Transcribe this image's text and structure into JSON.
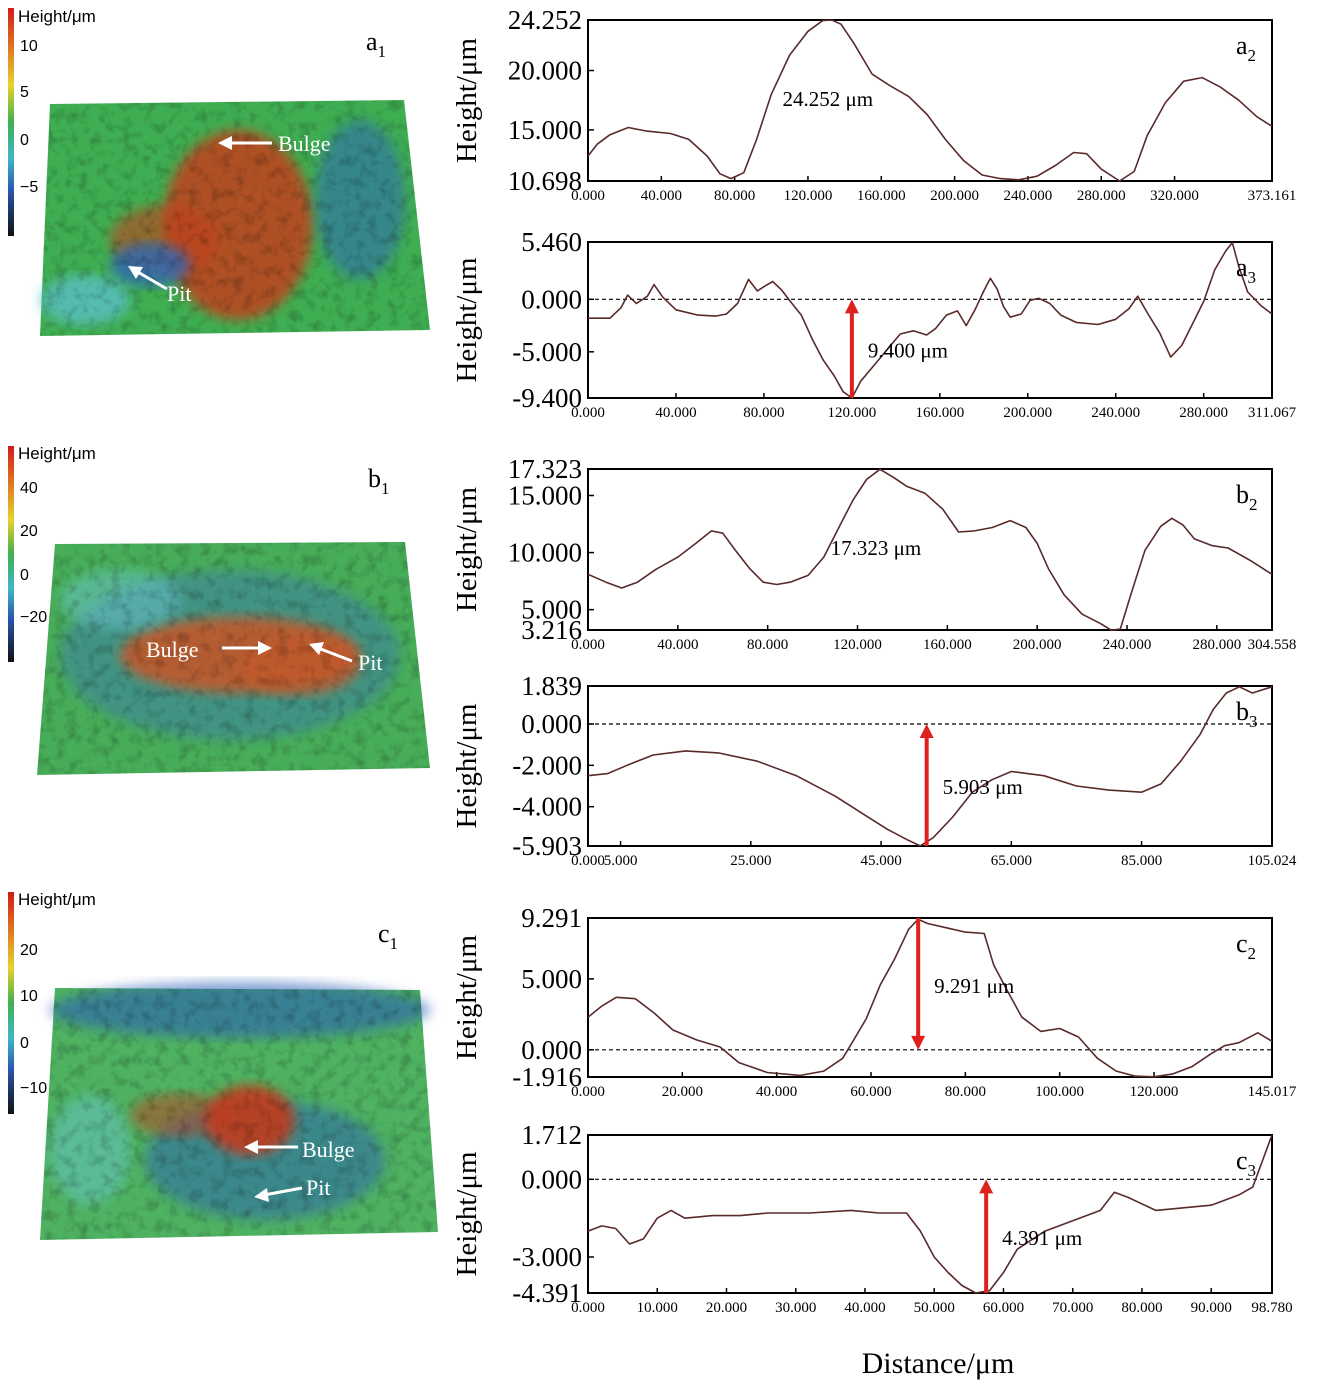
{
  "figure": {
    "shared_xlabel": "Distance/μm"
  },
  "maps": [
    {
      "panel": "a1",
      "panel_letter": "a",
      "panel_sub": "1",
      "colorbar_title": "Height/μm",
      "colorbar_ticks": [
        "10",
        "5",
        "0",
        "−5"
      ],
      "colorbar_tick_values": [
        10,
        5,
        0,
        -5
      ],
      "colorbar_range": [
        -9,
        14
      ],
      "surface_colors": {
        "base": "#3fae52",
        "high": "#c2411f",
        "low": "#2f67b8",
        "rim": "#5fc1d6"
      },
      "annotations": [
        {
          "label": "Bulge",
          "arrow": "left"
        },
        {
          "label": "Pit",
          "arrow": "up-left"
        }
      ]
    },
    {
      "panel": "b1",
      "panel_letter": "b",
      "panel_sub": "1",
      "colorbar_title": "Height/μm",
      "colorbar_ticks": [
        "40",
        "20",
        "0",
        "−20"
      ],
      "colorbar_tick_values": [
        40,
        20,
        0,
        -20
      ],
      "colorbar_range": [
        -35,
        55
      ],
      "surface_colors": {
        "base": "#47ad58",
        "high": "#c2582a",
        "low": "#3a74b8",
        "rim": "#6cc4cf"
      },
      "annotations": [
        {
          "label": "Bulge",
          "arrow": "right"
        },
        {
          "label": "Pit",
          "arrow": "up-left"
        }
      ]
    },
    {
      "panel": "c1",
      "panel_letter": "c",
      "panel_sub": "1",
      "colorbar_title": "Height/μm",
      "colorbar_ticks": [
        "20",
        "10",
        "0",
        "−10"
      ],
      "colorbar_tick_values": [
        20,
        10,
        0,
        -10
      ],
      "colorbar_range": [
        -16,
        30
      ],
      "surface_colors": {
        "base": "#4eb261",
        "high": "#c23a1c",
        "low": "#2c5fb5",
        "rim": "#6bc6d8"
      },
      "annotations": [
        {
          "label": "Bulge",
          "arrow": "left"
        },
        {
          "label": "Pit",
          "arrow": "left"
        }
      ]
    }
  ],
  "chart_data": [
    {
      "panel": "a2",
      "panel_letter": "a",
      "panel_sub": "2",
      "type": "line",
      "ylabel": "Height/μm",
      "ylim": [
        10.698,
        24.252
      ],
      "yticks": [
        10.698,
        15.0,
        20.0,
        24.252
      ],
      "ytick_labels": [
        "10.698",
        "15.000",
        "20.000",
        "24.252"
      ],
      "xlim": [
        0,
        373.161
      ],
      "xticks": [
        0,
        40,
        80,
        120,
        160,
        200,
        240,
        280,
        320,
        373.161
      ],
      "xtick_labels": [
        "0.000",
        "40.000",
        "80.000",
        "120.000",
        "160.000",
        "200.000",
        "240.000",
        "280.000",
        "320.000",
        "373.161"
      ],
      "zero_line": false,
      "annotation": {
        "text": "24.252 μm",
        "arrow": false
      },
      "x": [
        0,
        5,
        12,
        22,
        32,
        45,
        55,
        65,
        72,
        78,
        85,
        92,
        100,
        110,
        120,
        128,
        133,
        138,
        145,
        155,
        165,
        175,
        185,
        195,
        205,
        215,
        225,
        235,
        245,
        255,
        265,
        272,
        280,
        290,
        298,
        305,
        315,
        325,
        335,
        345,
        355,
        365,
        373.161
      ],
      "y": [
        12.8,
        13.8,
        14.6,
        15.2,
        14.9,
        14.7,
        14.2,
        12.8,
        11.3,
        10.9,
        11.4,
        14.2,
        18.0,
        21.3,
        23.3,
        24.2,
        24.25,
        23.9,
        22.3,
        19.7,
        18.7,
        17.8,
        16.3,
        14.2,
        12.4,
        11.2,
        10.9,
        10.8,
        11.1,
        12.0,
        13.1,
        13.0,
        11.7,
        10.7,
        11.5,
        14.5,
        17.3,
        19.1,
        19.4,
        18.6,
        17.5,
        16.1,
        15.3
      ]
    },
    {
      "panel": "a3",
      "panel_letter": "a",
      "panel_sub": "3",
      "type": "line",
      "ylabel": "Height/μm",
      "ylim": [
        -9.4,
        5.46
      ],
      "yticks": [
        -9.4,
        -5.0,
        0.0,
        5.46
      ],
      "ytick_labels": [
        "-9.400",
        "-5.000",
        "0.000",
        "5.460"
      ],
      "xlim": [
        0,
        311.067
      ],
      "xticks": [
        0,
        40,
        80,
        120,
        160,
        200,
        240,
        280,
        311.067
      ],
      "xtick_labels": [
        "0.000",
        "40.000",
        "80.000",
        "120.000",
        "160.000",
        "200.000",
        "240.000",
        "280.000",
        "311.067"
      ],
      "zero_line": true,
      "annotation": {
        "text": "9.400 μm",
        "arrow": true,
        "arrow_x": 120,
        "arrow_from": -9.4,
        "arrow_to": 0
      },
      "x": [
        0,
        5,
        10,
        15,
        18,
        22,
        27,
        30,
        34,
        40,
        50,
        58,
        63,
        68,
        73,
        77,
        80,
        84,
        88,
        92,
        97,
        102,
        107,
        112,
        116,
        120,
        124,
        130,
        136,
        142,
        148,
        154,
        158,
        163,
        168,
        172,
        176,
        180,
        183,
        186,
        189,
        192,
        197,
        201,
        205,
        210,
        215,
        222,
        232,
        240,
        246,
        250,
        255,
        260,
        265,
        270,
        275,
        280,
        285,
        290,
        293,
        296,
        300,
        306,
        311.067
      ],
      "y": [
        -1.8,
        -1.8,
        -1.8,
        -0.8,
        0.4,
        -0.4,
        0.3,
        1.4,
        0.2,
        -1.0,
        -1.5,
        -1.6,
        -1.4,
        -0.4,
        1.9,
        0.8,
        1.2,
        1.7,
        0.9,
        -0.2,
        -1.5,
        -3.8,
        -5.8,
        -7.3,
        -8.8,
        -9.4,
        -7.8,
        -6.3,
        -4.8,
        -3.3,
        -3.0,
        -3.4,
        -2.8,
        -1.5,
        -1.1,
        -2.5,
        -1.0,
        0.8,
        2.0,
        1.0,
        -0.7,
        -1.7,
        -1.4,
        -0.1,
        0.1,
        -0.4,
        -1.5,
        -2.2,
        -2.4,
        -1.9,
        -0.9,
        0.3,
        -1.5,
        -3.2,
        -5.5,
        -4.4,
        -2.3,
        -0.2,
        2.8,
        4.6,
        5.4,
        3.1,
        0.7,
        -0.6,
        -1.4
      ]
    },
    {
      "panel": "b2",
      "panel_letter": "b",
      "panel_sub": "2",
      "type": "line",
      "ylabel": "Height/μm",
      "ylim": [
        3.216,
        17.323
      ],
      "yticks": [
        3.216,
        5.0,
        10.0,
        15.0,
        17.323
      ],
      "ytick_labels": [
        "3.216",
        "5.000",
        "10.000",
        "15.000",
        "17.323"
      ],
      "xlim": [
        0,
        304.558
      ],
      "xticks": [
        0,
        40,
        80,
        120,
        160,
        200,
        240,
        280,
        304.558
      ],
      "xtick_labels": [
        "0.000",
        "40.000",
        "80.000",
        "120.000",
        "160.000",
        "200.000",
        "240.000",
        "280.000",
        "304.558"
      ],
      "zero_line": false,
      "annotation": {
        "text": "17.323 μm",
        "arrow": false
      },
      "x": [
        0,
        8,
        15,
        22,
        30,
        40,
        48,
        55,
        60,
        66,
        72,
        78,
        84,
        90,
        98,
        105,
        112,
        118,
        124,
        130,
        136,
        142,
        150,
        158,
        165,
        172,
        180,
        188,
        195,
        200,
        205,
        212,
        220,
        228,
        233,
        237,
        242,
        248,
        255,
        260,
        265,
        270,
        278,
        285,
        295,
        304.558
      ],
      "y": [
        8.1,
        7.4,
        6.9,
        7.4,
        8.5,
        9.6,
        10.8,
        11.9,
        11.7,
        10.1,
        8.6,
        7.4,
        7.2,
        7.4,
        8.0,
        9.6,
        12.3,
        14.6,
        16.4,
        17.3,
        16.6,
        15.8,
        15.2,
        13.8,
        11.8,
        11.9,
        12.2,
        12.8,
        12.2,
        10.8,
        8.6,
        6.3,
        4.6,
        3.8,
        3.2,
        3.3,
        6.5,
        10.2,
        12.3,
        13.0,
        12.4,
        11.2,
        10.6,
        10.4,
        9.3,
        8.1
      ]
    },
    {
      "panel": "b3",
      "panel_letter": "b",
      "panel_sub": "3",
      "type": "line",
      "ylabel": "Height/μm",
      "ylim": [
        -5.903,
        1.839
      ],
      "yticks": [
        -5.903,
        -4.0,
        -2.0,
        0.0,
        1.839
      ],
      "ytick_labels": [
        "-5.903",
        "-4.000",
        "-2.000",
        "0.000",
        "1.839"
      ],
      "xlim": [
        0,
        105.024
      ],
      "xticks": [
        0,
        5,
        25,
        45,
        65,
        85,
        105.024
      ],
      "xtick_labels": [
        "0.000",
        "5.000",
        "25.000",
        "45.000",
        "65.000",
        "85.000",
        "105.024"
      ],
      "zero_line": true,
      "annotation": {
        "text": "5.903 μm",
        "arrow": true,
        "arrow_x": 52,
        "arrow_from": -5.903,
        "arrow_to": 0
      },
      "x": [
        0,
        3,
        6,
        10,
        15,
        20,
        26,
        32,
        38,
        42,
        46,
        49,
        51,
        53,
        56,
        59,
        62,
        65,
        70,
        75,
        80,
        85,
        88,
        91,
        94,
        96,
        98,
        100,
        102,
        105.024
      ],
      "y": [
        -2.5,
        -2.4,
        -2.0,
        -1.5,
        -1.3,
        -1.4,
        -1.8,
        -2.5,
        -3.5,
        -4.3,
        -5.1,
        -5.6,
        -5.9,
        -5.5,
        -4.5,
        -3.3,
        -2.7,
        -2.3,
        -2.5,
        -3.0,
        -3.2,
        -3.3,
        -2.9,
        -1.8,
        -0.5,
        0.7,
        1.5,
        1.8,
        1.5,
        1.8
      ]
    },
    {
      "panel": "c2",
      "panel_letter": "c",
      "panel_sub": "2",
      "type": "line",
      "ylabel": "Height/μm",
      "ylim": [
        -1.916,
        9.291
      ],
      "yticks": [
        -1.916,
        0.0,
        5.0,
        9.291
      ],
      "ytick_labels": [
        "-1.916",
        "0.000",
        "5.000",
        "9.291"
      ],
      "xlim": [
        0,
        145.017
      ],
      "xticks": [
        0,
        20,
        40,
        60,
        80,
        100,
        120,
        145.017
      ],
      "xtick_labels": [
        "0.000",
        "20.000",
        "40.000",
        "60.000",
        "80.000",
        "100.000",
        "120.000",
        "145.017"
      ],
      "zero_line": true,
      "annotation": {
        "text": "9.291 μm",
        "arrow": true,
        "arrow_x": 70,
        "arrow_from": 9.291,
        "arrow_to": 0
      },
      "x": [
        0,
        3,
        6,
        10,
        14,
        18,
        23,
        28,
        32,
        38,
        45,
        50,
        54,
        56,
        59,
        62,
        65,
        68,
        70,
        72,
        76,
        80,
        84,
        86,
        89,
        92,
        96,
        100,
        104,
        108,
        112,
        116,
        120,
        124,
        128,
        132,
        135,
        138,
        142,
        145.017
      ],
      "y": [
        2.3,
        3.1,
        3.7,
        3.6,
        2.6,
        1.4,
        0.7,
        0.2,
        -0.9,
        -1.6,
        -1.8,
        -1.5,
        -0.6,
        0.5,
        2.2,
        4.6,
        6.4,
        8.5,
        9.2,
        8.9,
        8.6,
        8.3,
        8.2,
        6.0,
        4.1,
        2.3,
        1.3,
        1.5,
        0.9,
        -0.6,
        -1.5,
        -1.85,
        -1.9,
        -1.7,
        -1.2,
        -0.3,
        0.3,
        0.5,
        1.2,
        0.6
      ]
    },
    {
      "panel": "c3",
      "panel_letter": "c",
      "panel_sub": "3",
      "type": "line",
      "ylabel": "Height/μm",
      "ylim": [
        -4.391,
        1.712
      ],
      "yticks": [
        -4.391,
        -3.0,
        0.0,
        1.712
      ],
      "ytick_labels": [
        "-4.391",
        "-3.000",
        "0.000",
        "1.712"
      ],
      "xlim": [
        0,
        98.78
      ],
      "xticks": [
        0,
        10,
        20,
        30,
        40,
        50,
        60,
        70,
        80,
        90,
        98.78
      ],
      "xtick_labels": [
        "0.000",
        "10.000",
        "20.000",
        "30.000",
        "40.000",
        "50.000",
        "60.000",
        "70.000",
        "80.000",
        "90.000",
        "98.780"
      ],
      "zero_line": true,
      "annotation": {
        "text": "4.391 μm",
        "arrow": true,
        "arrow_x": 57.5,
        "arrow_from": -4.391,
        "arrow_to": 0
      },
      "x": [
        0,
        2,
        4,
        6,
        8,
        10,
        12,
        14,
        18,
        22,
        26,
        32,
        38,
        42,
        46,
        48,
        50,
        52,
        54,
        56,
        58,
        60,
        62,
        66,
        70,
        74,
        76,
        78,
        82,
        86,
        90,
        94,
        96,
        98.78
      ],
      "y": [
        -2.0,
        -1.8,
        -1.9,
        -2.5,
        -2.3,
        -1.5,
        -1.2,
        -1.5,
        -1.4,
        -1.4,
        -1.3,
        -1.3,
        -1.2,
        -1.3,
        -1.3,
        -2.0,
        -3.0,
        -3.6,
        -4.1,
        -4.39,
        -4.3,
        -3.6,
        -2.7,
        -2.0,
        -1.6,
        -1.2,
        -0.5,
        -0.7,
        -1.2,
        -1.1,
        -1.0,
        -0.6,
        -0.3,
        1.712
      ]
    }
  ]
}
